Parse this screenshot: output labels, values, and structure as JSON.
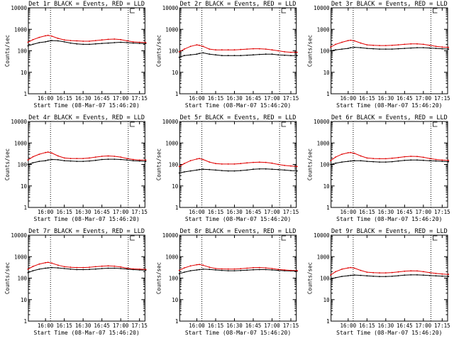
{
  "colors": {
    "events": "#000000",
    "lld": "#e00000",
    "axis": "#000000",
    "background": "#ffffff"
  },
  "chart_data": [
    {
      "type": "line",
      "title": "Det 1r BLACK = Events, RED = LLD",
      "xlabel": "Start Time (08-Mar-07 15:46:20)",
      "ylabel": "Counts/sec",
      "y_scale": "log",
      "ylim": [
        1,
        10000
      ],
      "xlim_minutes_after_start": [
        0,
        93
      ],
      "xticks": [
        "16:00",
        "16:15",
        "16:30",
        "16:45",
        "17:00",
        "17:15"
      ],
      "yticks": [
        "1",
        "10",
        "100",
        "1000",
        "10000"
      ],
      "event_markers": [
        "16:04",
        "17:06"
      ],
      "grid": false,
      "x": [
        "15:46",
        "15:50",
        "15:55",
        "16:00",
        "16:02",
        "16:05",
        "16:10",
        "16:15",
        "16:20",
        "16:25",
        "16:30",
        "16:35",
        "16:40",
        "16:45",
        "16:50",
        "16:55",
        "17:00",
        "17:05",
        "17:10",
        "17:15",
        "17:20"
      ],
      "series": [
        {
          "values": [
            170,
            200,
            240,
            260,
            280,
            300,
            290,
            260,
            230,
            210,
            200,
            200,
            210,
            220,
            230,
            240,
            250,
            240,
            230,
            220,
            220
          ]
        },
        {
          "values": [
            250,
            330,
            420,
            500,
            520,
            480,
            380,
            320,
            300,
            290,
            280,
            280,
            300,
            320,
            340,
            350,
            330,
            290,
            260,
            250,
            240
          ]
        }
      ]
    },
    {
      "type": "line",
      "title": "Det 2r BLACK = Events, RED = LLD",
      "xlabel": "Start Time (08-Mar-07 15:46:20)",
      "ylabel": "Counts/sec",
      "y_scale": "log",
      "ylim": [
        1,
        10000
      ],
      "xlim_minutes_after_start": [
        0,
        93
      ],
      "xticks": [
        "16:00",
        "16:15",
        "16:30",
        "16:45",
        "17:00",
        "17:15"
      ],
      "yticks": [
        "1",
        "10",
        "100",
        "1000",
        "10000"
      ],
      "event_markers": [
        "16:04",
        "17:06"
      ],
      "grid": false,
      "x": [
        "15:46",
        "15:50",
        "15:55",
        "16:00",
        "16:02",
        "16:05",
        "16:10",
        "16:15",
        "16:20",
        "16:25",
        "16:30",
        "16:35",
        "16:40",
        "16:45",
        "16:50",
        "16:55",
        "17:00",
        "17:05",
        "17:10",
        "17:15",
        "17:20"
      ],
      "series": [
        {
          "values": [
            50,
            60,
            65,
            70,
            75,
            80,
            70,
            65,
            60,
            60,
            60,
            60,
            62,
            65,
            68,
            70,
            70,
            65,
            62,
            60,
            60
          ]
        },
        {
          "values": [
            90,
            120,
            160,
            190,
            180,
            160,
            120,
            110,
            110,
            110,
            110,
            115,
            120,
            125,
            125,
            120,
            110,
            100,
            90,
            85,
            85
          ]
        }
      ]
    },
    {
      "type": "line",
      "title": "Det 3r BLACK = Events, RED = LLD",
      "xlabel": "Start Time (08-Mar-07 15:46:20)",
      "ylabel": "Counts/sec",
      "y_scale": "log",
      "ylim": [
        1,
        10000
      ],
      "xlim_minutes_after_start": [
        0,
        93
      ],
      "xticks": [
        "16:00",
        "16:15",
        "16:30",
        "16:45",
        "17:00",
        "17:15"
      ],
      "yticks": [
        "1",
        "10",
        "100",
        "1000",
        "10000"
      ],
      "event_markers": [
        "16:04",
        "17:06"
      ],
      "grid": false,
      "x": [
        "15:46",
        "15:50",
        "15:55",
        "16:00",
        "16:02",
        "16:05",
        "16:10",
        "16:15",
        "16:20",
        "16:25",
        "16:30",
        "16:35",
        "16:40",
        "16:45",
        "16:50",
        "16:55",
        "17:00",
        "17:05",
        "17:10",
        "17:15",
        "17:20"
      ],
      "series": [
        {
          "values": [
            100,
            110,
            120,
            130,
            140,
            145,
            140,
            130,
            125,
            120,
            120,
            120,
            125,
            130,
            135,
            140,
            140,
            135,
            130,
            125,
            120
          ]
        },
        {
          "values": [
            150,
            200,
            250,
            300,
            310,
            290,
            230,
            190,
            180,
            175,
            175,
            180,
            190,
            200,
            210,
            210,
            200,
            180,
            160,
            150,
            145
          ]
        }
      ]
    },
    {
      "type": "line",
      "title": "Det 4r BLACK = Events, RED = LLD",
      "xlabel": "Start Time (08-Mar-07 15:46:20)",
      "ylabel": "Counts/sec",
      "y_scale": "log",
      "ylim": [
        1,
        10000
      ],
      "xlim_minutes_after_start": [
        0,
        93
      ],
      "xticks": [
        "16:00",
        "16:15",
        "16:30",
        "16:45",
        "17:00",
        "17:15"
      ],
      "yticks": [
        "1",
        "10",
        "100",
        "1000",
        "10000"
      ],
      "event_markers": [
        "16:04",
        "17:06"
      ],
      "grid": false,
      "x": [
        "15:46",
        "15:50",
        "15:55",
        "16:00",
        "16:02",
        "16:05",
        "16:10",
        "16:15",
        "16:20",
        "16:25",
        "16:30",
        "16:35",
        "16:40",
        "16:45",
        "16:50",
        "16:55",
        "17:00",
        "17:05",
        "17:10",
        "17:15",
        "17:20"
      ],
      "series": [
        {
          "values": [
            100,
            120,
            140,
            150,
            160,
            170,
            165,
            150,
            145,
            140,
            140,
            145,
            155,
            170,
            175,
            175,
            170,
            160,
            150,
            145,
            140
          ]
        },
        {
          "values": [
            160,
            230,
            300,
            360,
            380,
            340,
            250,
            200,
            190,
            190,
            190,
            200,
            220,
            240,
            250,
            240,
            220,
            190,
            170,
            160,
            160
          ]
        }
      ]
    },
    {
      "type": "line",
      "title": "Det 5r BLACK = Events, RED = LLD",
      "xlabel": "Start Time (08-Mar-07 15:46:20)",
      "ylabel": "Counts/sec",
      "y_scale": "log",
      "ylim": [
        1,
        10000
      ],
      "xlim_minutes_after_start": [
        0,
        93
      ],
      "xticks": [
        "16:00",
        "16:15",
        "16:30",
        "16:45",
        "17:00",
        "17:15"
      ],
      "yticks": [
        "1",
        "10",
        "100",
        "1000",
        "10000"
      ],
      "event_markers": [
        "16:04",
        "17:06"
      ],
      "grid": false,
      "x": [
        "15:46",
        "15:50",
        "15:55",
        "16:00",
        "16:02",
        "16:05",
        "16:10",
        "16:15",
        "16:20",
        "16:25",
        "16:30",
        "16:35",
        "16:40",
        "16:45",
        "16:50",
        "16:55",
        "17:00",
        "17:05",
        "17:10",
        "17:15",
        "17:20"
      ],
      "series": [
        {
          "values": [
            40,
            45,
            50,
            55,
            58,
            60,
            58,
            55,
            52,
            50,
            50,
            52,
            55,
            60,
            62,
            62,
            60,
            58,
            55,
            52,
            50
          ]
        },
        {
          "values": [
            80,
            110,
            150,
            180,
            190,
            170,
            130,
            110,
            105,
            105,
            105,
            110,
            118,
            125,
            128,
            125,
            115,
            100,
            90,
            85,
            80
          ]
        }
      ]
    },
    {
      "type": "line",
      "title": "Det 6r BLACK = Events, RED = LLD",
      "xlabel": "Start Time (08-Mar-07 15:46:20)",
      "ylabel": "Counts/sec",
      "y_scale": "log",
      "ylim": [
        1,
        10000
      ],
      "xlim_minutes_after_start": [
        0,
        93
      ],
      "xticks": [
        "16:00",
        "16:15",
        "16:30",
        "16:45",
        "17:00",
        "17:15"
      ],
      "yticks": [
        "1",
        "10",
        "100",
        "1000",
        "10000"
      ],
      "event_markers": [
        "16:04",
        "17:06"
      ],
      "grid": false,
      "x": [
        "15:46",
        "15:50",
        "15:55",
        "16:00",
        "16:02",
        "16:05",
        "16:10",
        "16:15",
        "16:20",
        "16:25",
        "16:30",
        "16:35",
        "16:40",
        "16:45",
        "16:50",
        "16:55",
        "17:00",
        "17:05",
        "17:10",
        "17:15",
        "17:20"
      ],
      "series": [
        {
          "values": [
            100,
            115,
            130,
            140,
            145,
            150,
            148,
            140,
            135,
            130,
            130,
            135,
            145,
            155,
            160,
            160,
            155,
            150,
            145,
            140,
            135
          ]
        },
        {
          "values": [
            150,
            220,
            300,
            350,
            360,
            330,
            250,
            200,
            190,
            185,
            185,
            195,
            210,
            230,
            240,
            235,
            215,
            190,
            170,
            160,
            155
          ]
        }
      ]
    },
    {
      "type": "line",
      "title": "Det 7r BLACK = Events, RED = LLD",
      "xlabel": "Start Time (08-Mar-07 15:46:20)",
      "ylabel": "Counts/sec",
      "y_scale": "log",
      "ylim": [
        1,
        10000
      ],
      "xlim_minutes_after_start": [
        0,
        93
      ],
      "xticks": [
        "16:00",
        "16:15",
        "16:30",
        "16:45",
        "17:00",
        "17:15"
      ],
      "yticks": [
        "1",
        "10",
        "100",
        "1000",
        "10000"
      ],
      "event_markers": [
        "16:04",
        "17:06"
      ],
      "grid": false,
      "x": [
        "15:46",
        "15:50",
        "15:55",
        "16:00",
        "16:02",
        "16:05",
        "16:10",
        "16:15",
        "16:20",
        "16:25",
        "16:30",
        "16:35",
        "16:40",
        "16:45",
        "16:50",
        "16:55",
        "17:00",
        "17:05",
        "17:10",
        "17:15",
        "17:20"
      ],
      "series": [
        {
          "values": [
            180,
            220,
            260,
            290,
            300,
            310,
            300,
            280,
            260,
            250,
            250,
            255,
            265,
            280,
            290,
            290,
            280,
            265,
            250,
            240,
            235
          ]
        },
        {
          "values": [
            260,
            350,
            450,
            520,
            540,
            500,
            400,
            340,
            320,
            310,
            310,
            320,
            340,
            360,
            370,
            360,
            330,
            290,
            270,
            260,
            255
          ]
        }
      ]
    },
    {
      "type": "line",
      "title": "Det 8r BLACK = Events, RED = LLD",
      "xlabel": "Start Time (08-Mar-07 15:46:20)",
      "ylabel": "Counts/sec",
      "y_scale": "log",
      "ylim": [
        1,
        10000
      ],
      "xlim_minutes_after_start": [
        0,
        93
      ],
      "xticks": [
        "16:00",
        "16:15",
        "16:30",
        "16:45",
        "17:00",
        "17:15"
      ],
      "yticks": [
        "1",
        "10",
        "100",
        "1000",
        "10000"
      ],
      "event_markers": [
        "16:04",
        "17:06"
      ],
      "grid": false,
      "x": [
        "15:46",
        "15:50",
        "15:55",
        "16:00",
        "16:02",
        "16:05",
        "16:10",
        "16:15",
        "16:20",
        "16:25",
        "16:30",
        "16:35",
        "16:40",
        "16:45",
        "16:50",
        "16:55",
        "17:00",
        "17:05",
        "17:10",
        "17:15",
        "17:20"
      ],
      "series": [
        {
          "values": [
            160,
            190,
            220,
            240,
            250,
            260,
            255,
            240,
            230,
            220,
            220,
            225,
            235,
            245,
            250,
            250,
            240,
            230,
            220,
            215,
            210
          ]
        },
        {
          "values": [
            230,
            300,
            370,
            420,
            430,
            400,
            320,
            280,
            270,
            265,
            265,
            275,
            290,
            305,
            310,
            300,
            280,
            255,
            240,
            230,
            225
          ]
        }
      ]
    },
    {
      "type": "line",
      "title": "Det 9r BLACK = Events, RED = LLD",
      "xlabel": "Start Time (08-Mar-07 15:46:20)",
      "ylabel": "Counts/sec",
      "y_scale": "log",
      "ylim": [
        1,
        10000
      ],
      "xlim_minutes_after_start": [
        0,
        93
      ],
      "xticks": [
        "16:00",
        "16:15",
        "16:30",
        "16:45",
        "17:00",
        "17:15"
      ],
      "yticks": [
        "1",
        "10",
        "100",
        "1000",
        "10000"
      ],
      "event_markers": [
        "16:04",
        "17:06"
      ],
      "grid": false,
      "x": [
        "15:46",
        "15:50",
        "15:55",
        "16:00",
        "16:02",
        "16:05",
        "16:10",
        "16:15",
        "16:20",
        "16:25",
        "16:30",
        "16:35",
        "16:40",
        "16:45",
        "16:50",
        "16:55",
        "17:00",
        "17:05",
        "17:10",
        "17:15",
        "17:20"
      ],
      "series": [
        {
          "values": [
            90,
            105,
            120,
            130,
            135,
            140,
            135,
            128,
            122,
            118,
            118,
            122,
            130,
            138,
            142,
            142,
            138,
            132,
            128,
            124,
            120
          ]
        },
        {
          "values": [
            140,
            200,
            260,
            300,
            310,
            290,
            230,
            190,
            180,
            175,
            175,
            182,
            195,
            210,
            218,
            215,
            200,
            180,
            165,
            155,
            150
          ]
        }
      ]
    }
  ]
}
